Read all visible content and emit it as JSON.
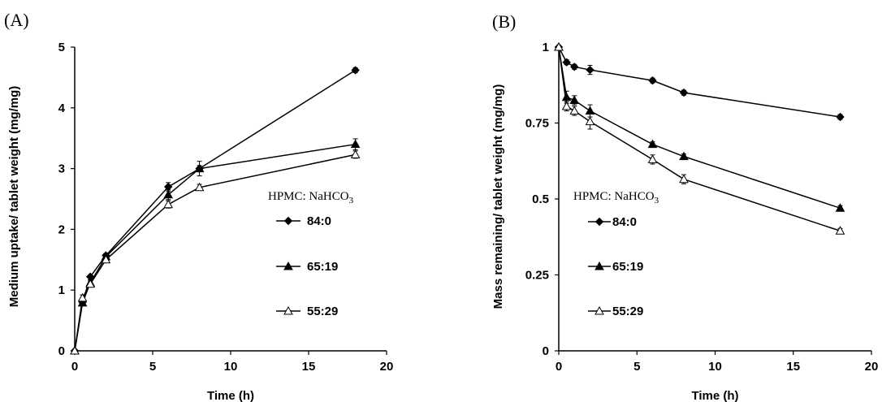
{
  "chart_data": [
    {
      "type": "line",
      "panel_label": "(A)",
      "xlabel": "Time (h)",
      "ylabel": "Medium uptake/ tablet weight (mg/mg)",
      "xlim": [
        0,
        20
      ],
      "ylim": [
        0,
        5
      ],
      "xticks": [
        0,
        5,
        10,
        15,
        20
      ],
      "yticks": [
        0,
        1,
        2,
        3,
        4,
        5
      ],
      "legend_title": "HPMC: NaHCO",
      "legend_title_sub": "3",
      "legend_position": "right",
      "grid": false,
      "series": [
        {
          "name": "84:0",
          "marker": "diamond",
          "x": [
            0,
            0.5,
            1,
            2,
            6,
            8,
            18
          ],
          "y": [
            0,
            0.8,
            1.22,
            1.57,
            2.7,
            3.0,
            4.62
          ],
          "err": [
            0,
            0.03,
            0.03,
            0.03,
            0.07,
            0.05,
            0.04
          ]
        },
        {
          "name": "65:19",
          "marker": "triangle-filled",
          "x": [
            0,
            0.5,
            1,
            2,
            6,
            8,
            18
          ],
          "y": [
            0,
            0.79,
            1.12,
            1.55,
            2.57,
            3.0,
            3.4
          ],
          "err": [
            0,
            0.03,
            0.05,
            0.05,
            0.08,
            0.12,
            0.09
          ]
        },
        {
          "name": "55:29",
          "marker": "triangle-open",
          "x": [
            0,
            0.5,
            1,
            2,
            6,
            8,
            18
          ],
          "y": [
            0,
            0.87,
            1.1,
            1.5,
            2.41,
            2.69,
            3.23
          ],
          "err": [
            0,
            0.05,
            0.05,
            0.04,
            0.06,
            0.05,
            0.06
          ]
        }
      ]
    },
    {
      "type": "line",
      "panel_label": "(B)",
      "xlabel": "Time (h)",
      "ylabel": "Mass remaining/ tablet weight (mg/mg)",
      "xlim": [
        0,
        20
      ],
      "ylim": [
        0,
        1
      ],
      "xticks": [
        0,
        5,
        10,
        15,
        20
      ],
      "yticks": [
        0,
        0.25,
        0.5,
        0.75,
        1
      ],
      "legend_title": "HPMC: NaHCO",
      "legend_title_sub": "3",
      "legend_position": "center",
      "grid": false,
      "series": [
        {
          "name": "84:0",
          "marker": "diamond",
          "x": [
            0,
            0.5,
            1,
            2,
            6,
            8,
            18
          ],
          "y": [
            1,
            0.95,
            0.935,
            0.925,
            0.89,
            0.85,
            0.77
          ],
          "err": [
            0,
            0.008,
            0.008,
            0.015,
            0.008,
            0.008,
            0.008
          ]
        },
        {
          "name": "65:19",
          "marker": "triangle-filled",
          "x": [
            0,
            0.5,
            1,
            2,
            6,
            8,
            18
          ],
          "y": [
            1,
            0.835,
            0.825,
            0.79,
            0.68,
            0.64,
            0.47
          ],
          "err": [
            0,
            0.02,
            0.015,
            0.02,
            0.008,
            0.008,
            0.008
          ]
        },
        {
          "name": "55:29",
          "marker": "triangle-open",
          "x": [
            0,
            0.5,
            1,
            2,
            6,
            8,
            18
          ],
          "y": [
            1,
            0.805,
            0.79,
            0.755,
            0.63,
            0.565,
            0.395
          ],
          "err": [
            0,
            0.015,
            0.015,
            0.025,
            0.015,
            0.015,
            0.008
          ]
        }
      ]
    }
  ]
}
